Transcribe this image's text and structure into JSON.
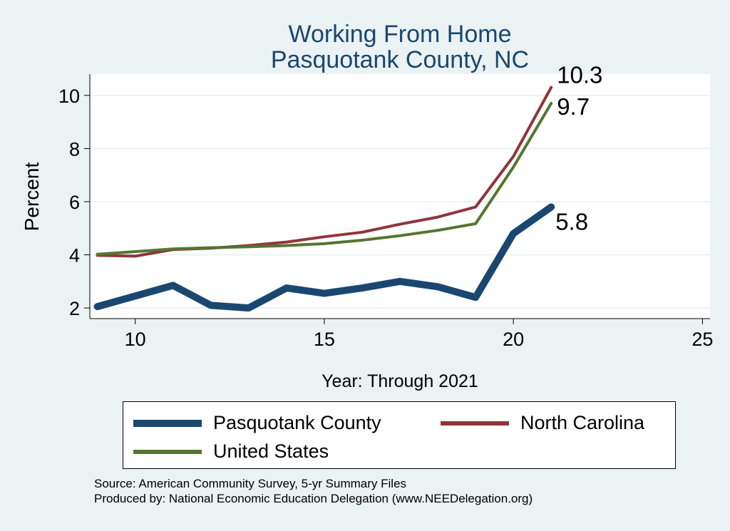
{
  "chart_data": {
    "type": "line",
    "title": "Working From Home",
    "subtitle": "Pasquotank County, NC",
    "xlabel": "Year: Through 2021",
    "ylabel": "Percent",
    "xlim": [
      8.8,
      25.2
    ],
    "ylim": [
      1.6,
      10.8
    ],
    "x_ticks": [
      10,
      15,
      20,
      25
    ],
    "y_ticks": [
      2,
      4,
      6,
      8,
      10
    ],
    "grid": true,
    "legend_position": "bottom",
    "x": [
      9,
      10,
      11,
      12,
      13,
      14,
      15,
      16,
      17,
      18,
      19,
      20,
      21
    ],
    "series": [
      {
        "name": "Pasquotank County",
        "color": "#1a476f",
        "values": [
          2.05,
          2.45,
          2.85,
          2.1,
          2.0,
          2.75,
          2.55,
          2.75,
          3.0,
          2.8,
          2.4,
          4.8,
          5.8
        ],
        "end_label": "5.8"
      },
      {
        "name": "North Carolina",
        "color": "#90353b",
        "values": [
          3.98,
          3.95,
          4.2,
          4.25,
          4.35,
          4.48,
          4.68,
          4.85,
          5.15,
          5.42,
          5.8,
          7.7,
          10.3
        ],
        "end_label": "10.3"
      },
      {
        "name": "United States",
        "color": "#55752f",
        "values": [
          4.02,
          4.12,
          4.22,
          4.27,
          4.3,
          4.35,
          4.42,
          4.55,
          4.72,
          4.92,
          5.17,
          7.3,
          9.7
        ],
        "end_label": "9.7"
      }
    ]
  },
  "legend": {
    "items": [
      "Pasquotank County",
      "North Carolina",
      "United States"
    ]
  },
  "source": {
    "line1": "Source: American Community Survey, 5-yr Summary Files",
    "line2": "Produced by: National Economic Education Delegation (www.NEEDelegation.org)"
  }
}
